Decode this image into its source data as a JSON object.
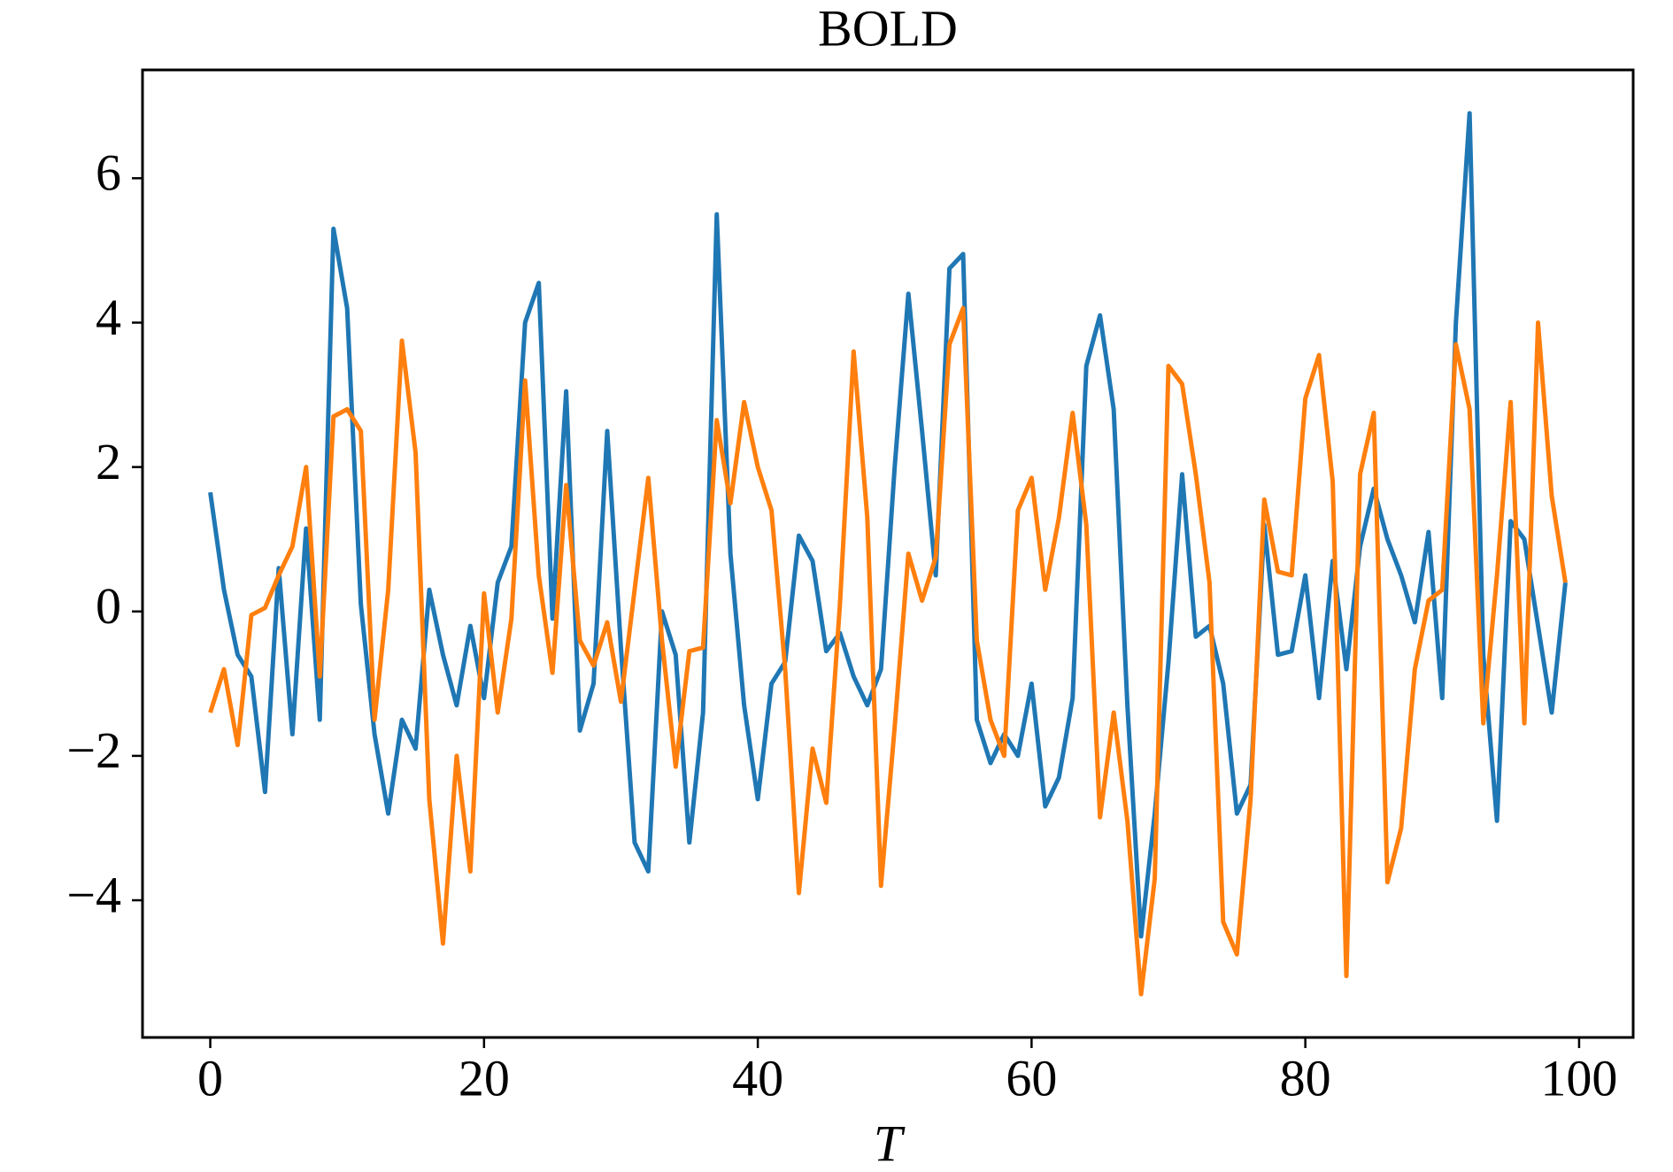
{
  "chart_data": {
    "type": "line",
    "title": "BOLD",
    "xlabel": "T",
    "x": [
      0,
      1,
      2,
      3,
      4,
      5,
      6,
      7,
      8,
      9,
      10,
      11,
      12,
      13,
      14,
      15,
      16,
      17,
      18,
      19,
      20,
      21,
      22,
      23,
      24,
      25,
      26,
      27,
      28,
      29,
      30,
      31,
      32,
      33,
      34,
      35,
      36,
      37,
      38,
      39,
      40,
      41,
      42,
      43,
      44,
      45,
      46,
      47,
      48,
      49,
      50,
      51,
      52,
      53,
      54,
      55,
      56,
      57,
      58,
      59,
      60,
      61,
      62,
      63,
      64,
      65,
      66,
      67,
      68,
      69,
      70,
      71,
      72,
      73,
      74,
      75,
      76,
      77,
      78,
      79,
      80,
      81,
      82,
      83,
      84,
      85,
      86,
      87,
      88,
      89,
      90,
      91,
      92,
      93,
      94,
      95,
      96,
      97,
      98,
      99
    ],
    "series": [
      {
        "color": "#1f77b4",
        "values": [
          1.65,
          0.3,
          -0.6,
          -0.9,
          -2.5,
          0.6,
          -1.7,
          1.15,
          -1.5,
          5.3,
          4.2,
          0.1,
          -1.7,
          -2.8,
          -1.5,
          -1.9,
          0.3,
          -0.6,
          -1.3,
          -0.2,
          -1.2,
          0.4,
          0.9,
          4.0,
          4.55,
          -0.1,
          3.05,
          -1.65,
          -1.0,
          2.5,
          -0.5,
          -3.2,
          -3.6,
          0.0,
          -0.6,
          -3.2,
          -1.4,
          5.5,
          0.8,
          -1.3,
          -2.6,
          -1.0,
          -0.7,
          1.05,
          0.7,
          -0.55,
          -0.3,
          -0.9,
          -1.3,
          -0.8,
          2.0,
          4.4,
          2.5,
          0.5,
          4.75,
          4.95,
          -1.5,
          -2.1,
          -1.7,
          -2.0,
          -1.0,
          -2.7,
          -2.3,
          -1.2,
          3.4,
          4.1,
          2.8,
          -1.3,
          -4.5,
          -2.8,
          -0.7,
          1.9,
          -0.35,
          -0.2,
          -1.0,
          -2.8,
          -2.4,
          1.2,
          -0.6,
          -0.55,
          0.5,
          -1.2,
          0.7,
          -0.8,
          0.9,
          1.7,
          1.0,
          0.5,
          -0.15,
          1.1,
          -1.2,
          4.0,
          6.9,
          -0.6,
          -2.9,
          1.25,
          1.0,
          -0.2,
          -1.4,
          0.4
        ]
      },
      {
        "color": "#ff7f0e",
        "values": [
          -1.4,
          -0.8,
          -1.85,
          -0.05,
          0.05,
          0.5,
          0.9,
          2.0,
          -0.9,
          2.7,
          2.8,
          2.5,
          -1.5,
          0.3,
          3.75,
          2.2,
          -2.6,
          -4.6,
          -2.0,
          -3.6,
          0.25,
          -1.4,
          -0.1,
          3.2,
          0.5,
          -0.85,
          1.75,
          -0.4,
          -0.75,
          -0.15,
          -1.25,
          0.3,
          1.85,
          -0.4,
          -2.15,
          -0.55,
          -0.5,
          2.65,
          1.5,
          2.9,
          2.0,
          1.4,
          -0.8,
          -3.9,
          -1.9,
          -2.65,
          0.1,
          3.6,
          1.3,
          -3.8,
          -1.6,
          0.8,
          0.15,
          0.75,
          3.7,
          4.2,
          -0.4,
          -1.5,
          -2.0,
          1.4,
          1.85,
          0.3,
          1.3,
          2.75,
          1.2,
          -2.85,
          -1.4,
          -2.9,
          -5.3,
          -3.7,
          3.4,
          3.15,
          1.9,
          0.4,
          -4.3,
          -4.75,
          -2.6,
          1.55,
          0.55,
          0.5,
          2.95,
          3.55,
          1.8,
          -5.05,
          1.9,
          2.75,
          -3.75,
          -3.0,
          -0.8,
          0.15,
          0.3,
          3.7,
          2.8,
          -1.55,
          0.5,
          2.9,
          -1.55,
          4.0,
          1.6,
          0.4
        ]
      }
    ],
    "xlim": [
      -4.95,
      103.95
    ],
    "xticks": [
      0,
      20,
      40,
      60,
      80,
      100
    ],
    "ylim": [
      -5.9,
      7.5
    ],
    "yticks": [
      {
        "value": -4,
        "label": "−4"
      },
      {
        "value": -2,
        "label": "−2"
      },
      0,
      2,
      4,
      6
    ]
  }
}
